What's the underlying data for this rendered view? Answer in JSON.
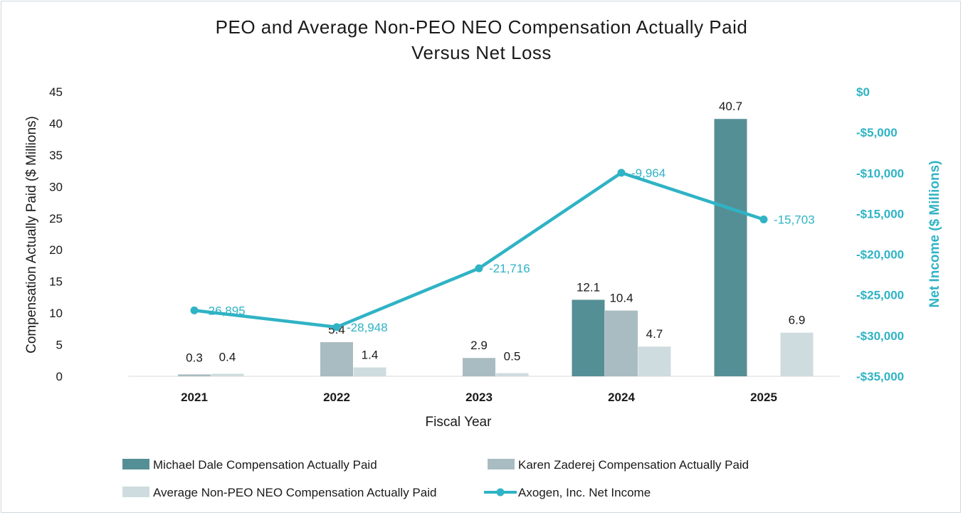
{
  "chart_data": {
    "type": "bar",
    "title_line1": "PEO and Average Non-PEO NEO Compensation Actually Paid",
    "title_line2": "Versus Net Loss",
    "xlabel": "Fiscal Year",
    "ylabel": "Compensation Actually Paid ($ Millions)",
    "y2label": "Net Income ($ Millions)",
    "categories": [
      "2021",
      "2022",
      "2023",
      "2024",
      "2025"
    ],
    "ylim": [
      0,
      45
    ],
    "yticks": [
      "0",
      "5",
      "10",
      "15",
      "20",
      "25",
      "30",
      "35",
      "40",
      "45"
    ],
    "y2lim": [
      -35000,
      0
    ],
    "y2ticks": [
      "$0",
      "-$5,000",
      "-$10,000",
      "-$15,000",
      "-$20,000",
      "-$25,000",
      "-$30,000",
      "-$35,000"
    ],
    "series": [
      {
        "name": "Michael Dale Compensation Actually Paid",
        "type": "bar",
        "color": "#558f96",
        "values": [
          null,
          null,
          null,
          12.1,
          40.7
        ],
        "labels": [
          "",
          "",
          "",
          "12.1",
          "40.7"
        ]
      },
      {
        "name": "Karen Zaderej Compensation Actually Paid",
        "type": "bar",
        "color": "#a9bcc1",
        "values": [
          0.3,
          5.4,
          2.9,
          10.4,
          null
        ],
        "labels": [
          "0.3",
          "5.4",
          "2.9",
          "10.4",
          ""
        ]
      },
      {
        "name": "Average Non-PEO NEO Compensation Actually Paid",
        "type": "bar",
        "color": "#cfdcdf",
        "values": [
          0.4,
          1.4,
          0.5,
          4.7,
          6.9
        ],
        "labels": [
          "0.4",
          "1.4",
          "0.5",
          "4.7",
          "6.9"
        ]
      },
      {
        "name": "Axogen, Inc. Net Income",
        "type": "line",
        "axis": "right",
        "color": "#2fb3c5",
        "values": [
          -26895,
          -28948,
          -21716,
          -9964,
          -15703
        ],
        "labels": [
          "-26,895",
          "-28,948",
          "-21,716",
          "-9,964",
          "-15,703"
        ]
      }
    ]
  }
}
